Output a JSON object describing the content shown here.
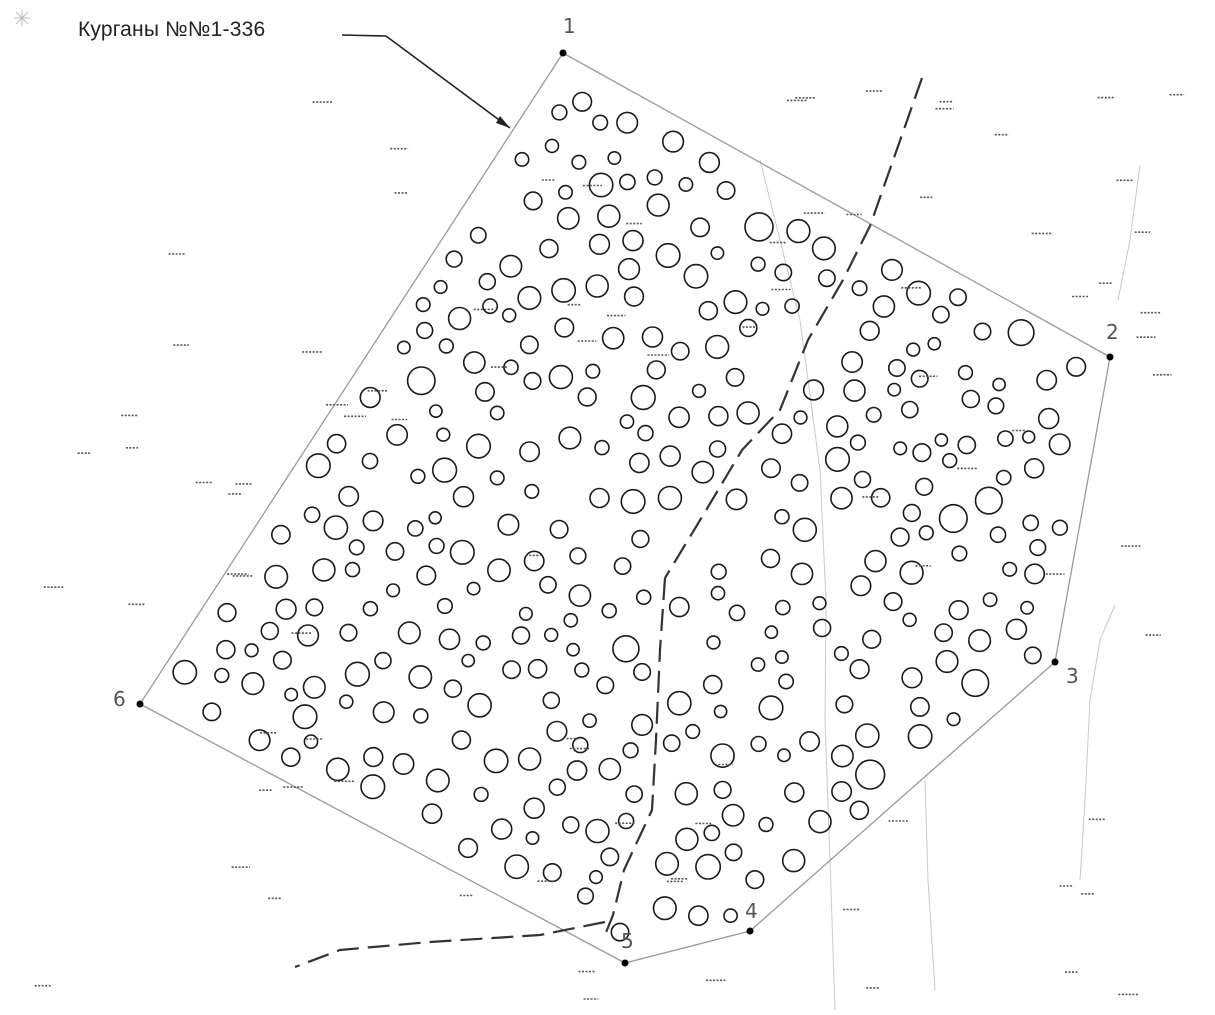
{
  "map": {
    "title": "Курганы №№1-336",
    "vertex_labels": [
      "1",
      "2",
      "3",
      "4",
      "5",
      "6"
    ]
  },
  "colors": {
    "background": "#ffffff",
    "boundary": "#9a9a9a",
    "mounds": "#1a1a1a",
    "road": "#333333"
  }
}
